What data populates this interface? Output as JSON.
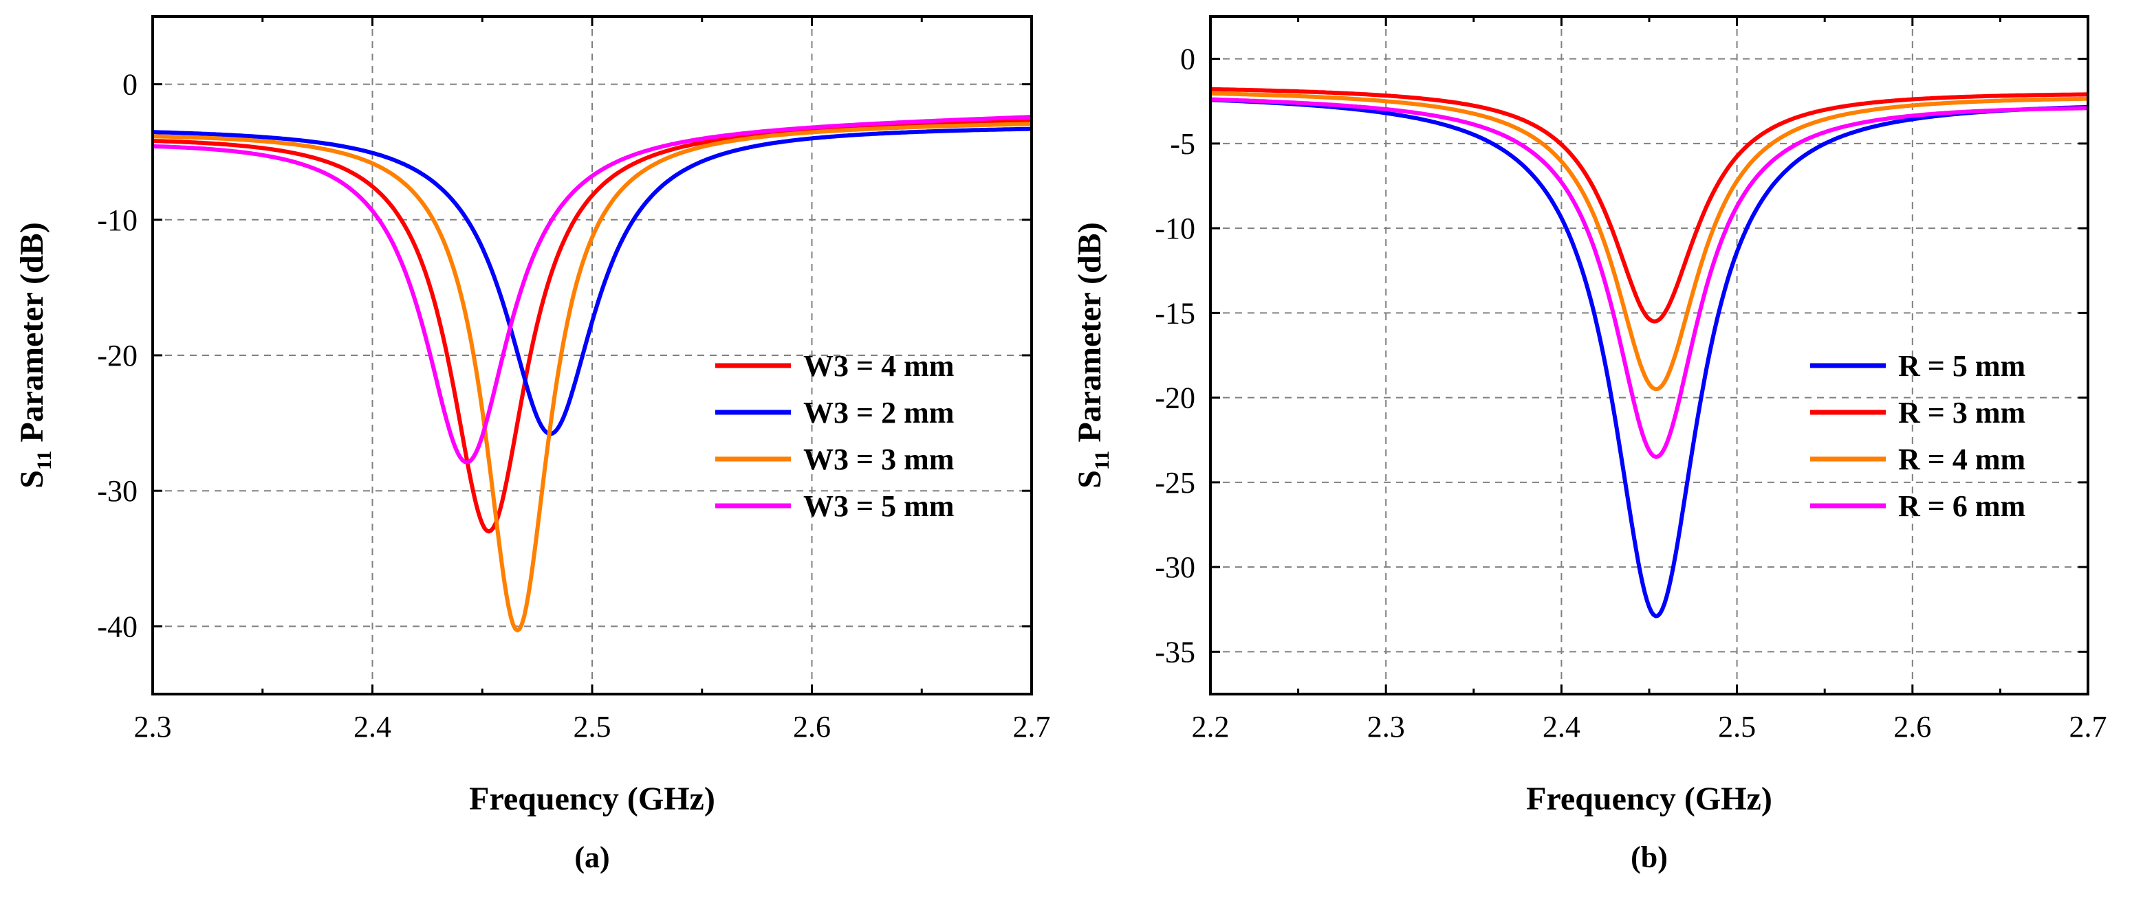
{
  "chart_data": [
    {
      "type": "line",
      "panel_label": "(a)",
      "xlabel": "Frequency (GHz)",
      "ylabel": {
        "prefix": "S",
        "subscript": "11",
        "suffix": " Parameter (dB)"
      },
      "xlim": [
        2.3,
        2.7
      ],
      "ylim": [
        -45,
        5
      ],
      "xticks": [
        2.3,
        2.4,
        2.5,
        2.6,
        2.7
      ],
      "xtick_labels": [
        "2.3",
        "2.4",
        "2.5",
        "2.6",
        "2.7"
      ],
      "yticks": [
        0,
        -10,
        -20,
        -30,
        -40
      ],
      "ytick_labels": [
        "0",
        "-10",
        "-20",
        "-30",
        "-40"
      ],
      "grid": true,
      "legend_position": "middle-right",
      "series": [
        {
          "name": "W3 = 4 mm",
          "color": "#ff0000",
          "f0": 2.453,
          "min": -33.0,
          "start": -3.6,
          "end": -2.5
        },
        {
          "name": "W3 = 2 mm",
          "color": "#0000ff",
          "f0": 2.481,
          "min": -25.8,
          "start": -3.1,
          "end": -3.0
        },
        {
          "name": "W3 = 3 mm",
          "color": "#ff8000",
          "f0": 2.466,
          "min": -40.3,
          "start": -3.4,
          "end": -2.7
        },
        {
          "name": "W3 = 5 mm",
          "color": "#ff00ff",
          "f0": 2.443,
          "min": -27.9,
          "start": -3.9,
          "end": -2.2
        }
      ]
    },
    {
      "type": "line",
      "panel_label": "(b)",
      "xlabel": "Frequency (GHz)",
      "ylabel": {
        "prefix": "S",
        "subscript": "11",
        "suffix": " Parameter (dB)"
      },
      "xlim": [
        2.2,
        2.7
      ],
      "ylim": [
        -37.5,
        2.5
      ],
      "xticks": [
        2.2,
        2.3,
        2.4,
        2.5,
        2.6,
        2.7
      ],
      "xtick_labels": [
        "2.2",
        "2.3",
        "2.4",
        "2.5",
        "2.6",
        "2.7"
      ],
      "yticks": [
        0,
        -5,
        -10,
        -15,
        -20,
        -25,
        -30,
        -35
      ],
      "ytick_labels": [
        "0",
        "-5",
        "-10",
        "-15",
        "-20",
        "-25",
        "-30",
        "-35"
      ],
      "grid": true,
      "legend_position": "middle-right",
      "series": [
        {
          "name": "R = 5 mm",
          "color": "#0000ff",
          "f0": 2.454,
          "min": -32.9,
          "start": -2.0,
          "end": -2.4
        },
        {
          "name": "R = 3 mm",
          "color": "#ff0000",
          "f0": 2.453,
          "min": -15.5,
          "start": -1.6,
          "end": -1.9
        },
        {
          "name": "R = 4 mm",
          "color": "#ff8000",
          "f0": 2.454,
          "min": -19.5,
          "start": -1.8,
          "end": -2.1
        },
        {
          "name": "R = 6 mm",
          "color": "#ff00ff",
          "f0": 2.454,
          "min": -23.5,
          "start": -2.1,
          "end": -2.6
        }
      ]
    }
  ]
}
